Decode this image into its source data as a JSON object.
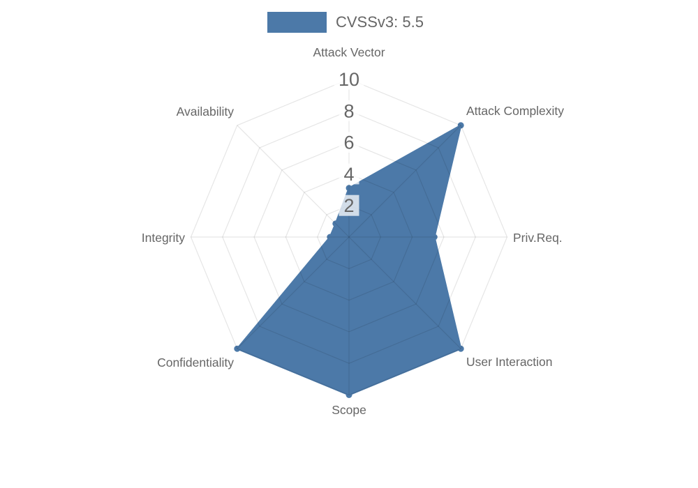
{
  "chart_data": {
    "type": "radar",
    "legend": "CVSSv3: 5.5",
    "score": "5.5",
    "max": 10,
    "ticks": [
      2,
      4,
      6,
      8,
      10
    ],
    "axes": [
      "Attack Vector",
      "Attack Complexity",
      "Priv.Req.",
      "User Interaction",
      "Scope",
      "Confidentiality",
      "Integrity",
      "Availability"
    ],
    "series": [
      {
        "name": "CVSSv3: 5.5",
        "values": [
          3.1,
          10,
          5.4,
          10,
          10,
          10,
          1.2,
          1.2
        ]
      }
    ],
    "layout": {
      "legend_position": "top",
      "grid": "polygon-web",
      "range": [
        0,
        10
      ]
    },
    "colors": {
      "series": "#4C79A8",
      "grid": "rgba(0,0,0,0.10)",
      "label": "#666666",
      "tick": "#666666",
      "tick_backdrop": "rgba(255,255,255,0.75)"
    }
  }
}
